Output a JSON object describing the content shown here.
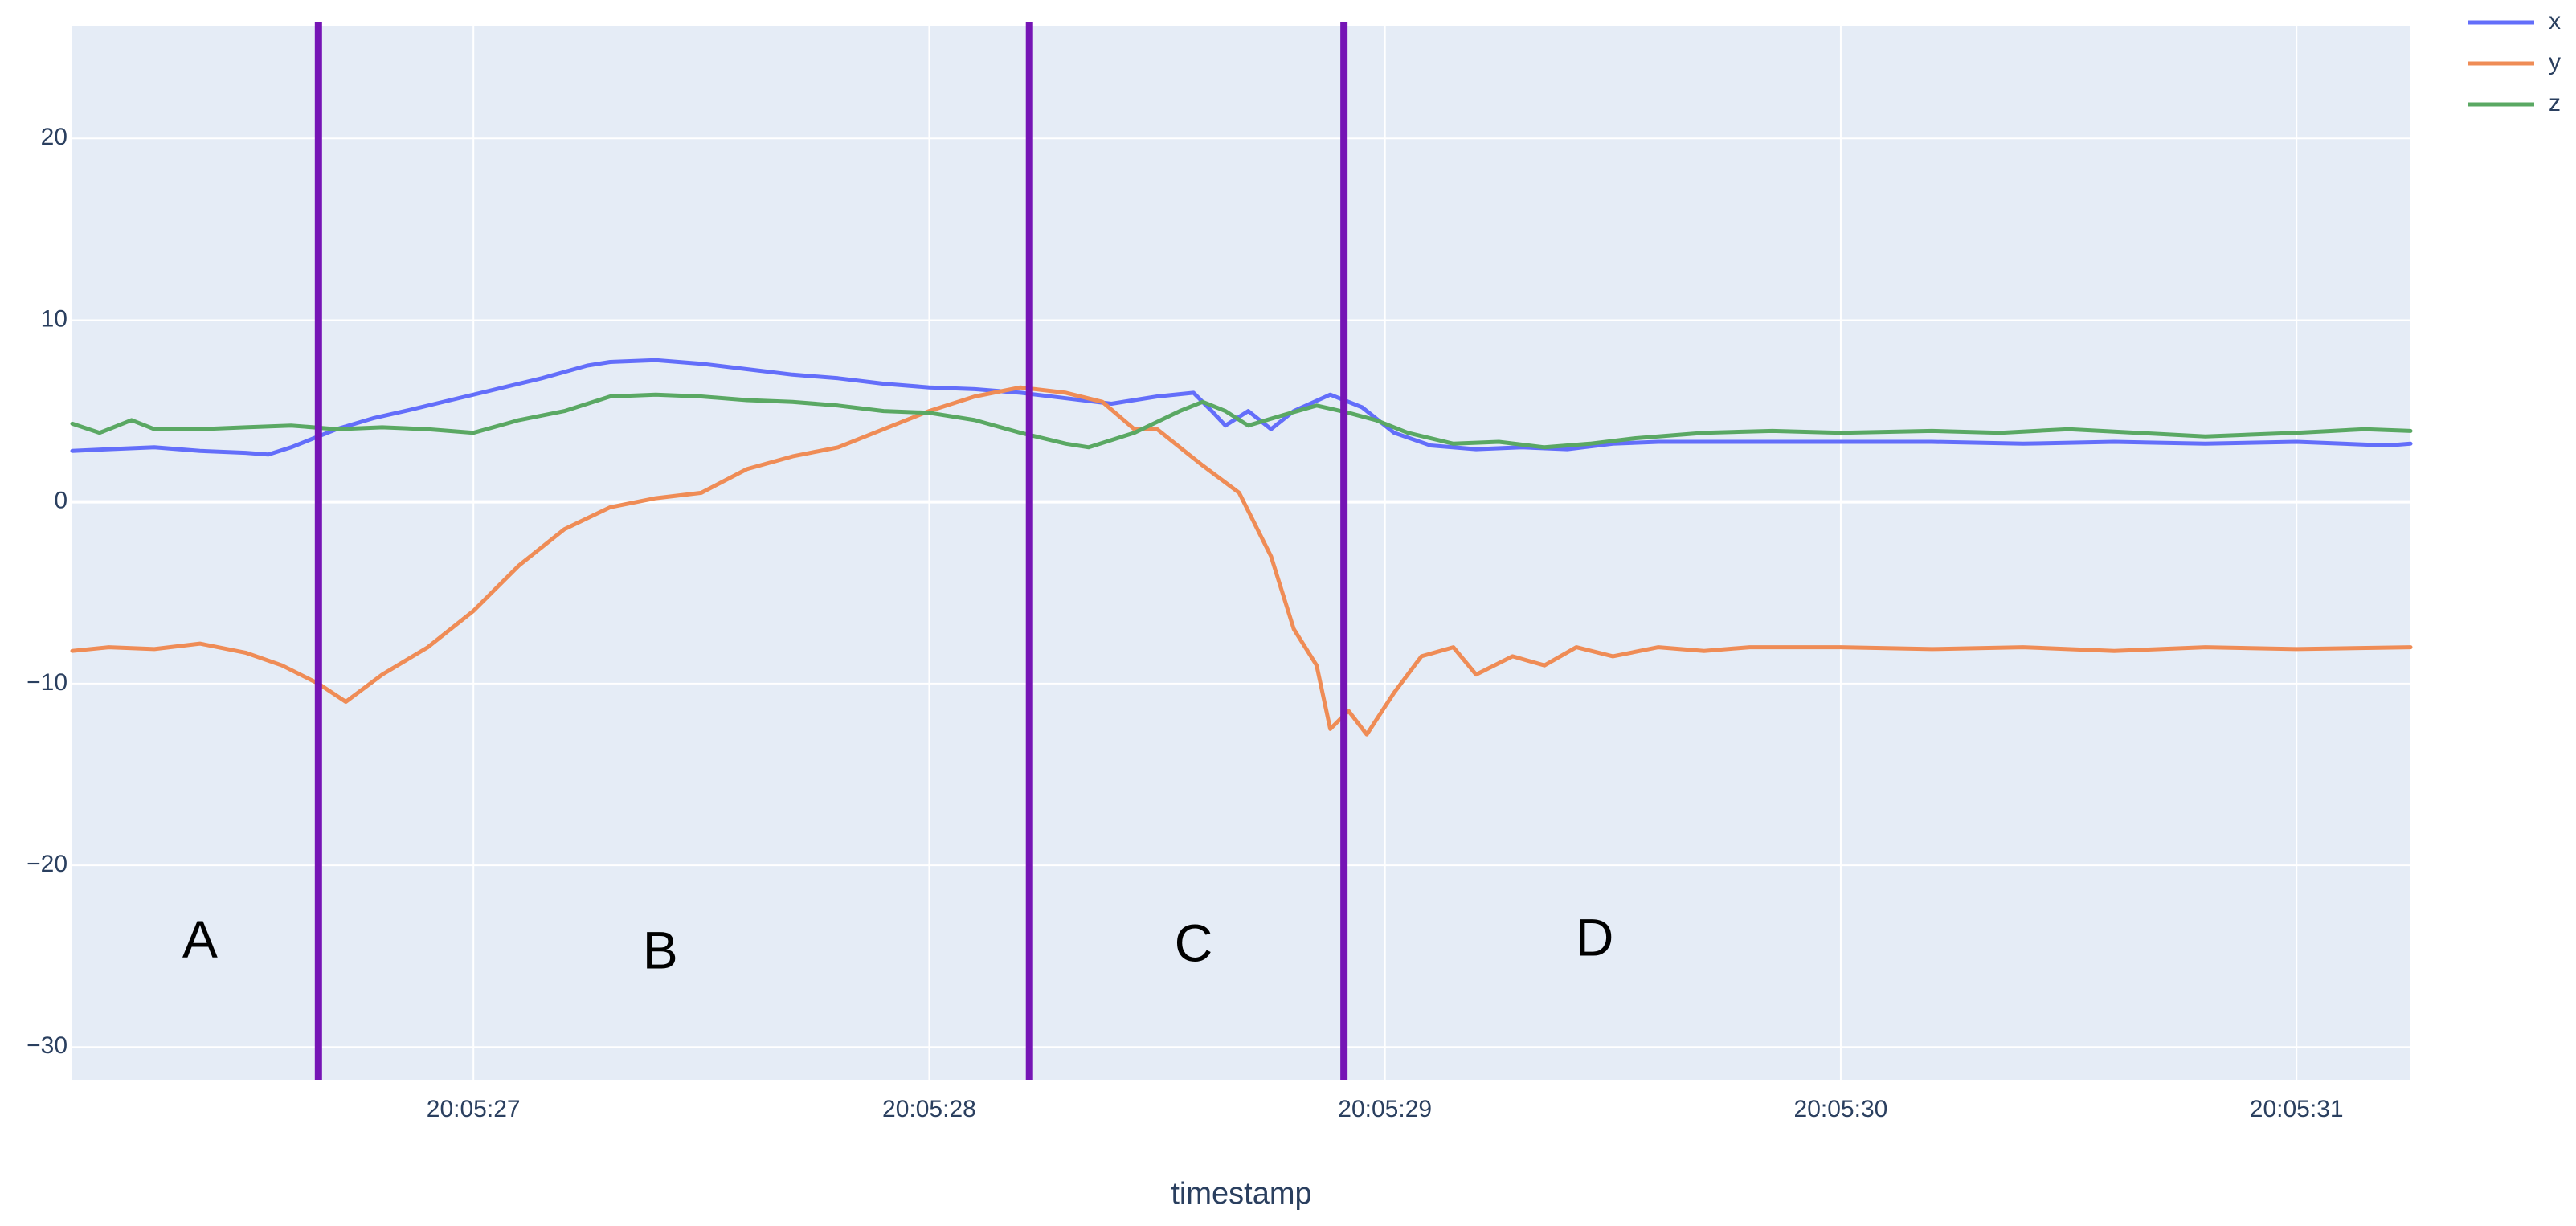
{
  "chart_data": {
    "type": "line",
    "title": "",
    "xlabel": "timestamp",
    "ylabel": "",
    "xlim": [
      26.12,
      31.25
    ],
    "ylim": [
      -31.8,
      26.2
    ],
    "grid": true,
    "legend_placement": "top-right, outside plot",
    "background_color": "#e5ecf6",
    "x_tick_values": [
      27,
      28,
      29,
      30,
      31
    ],
    "x_tick_labels": [
      "20:05:27",
      "20:05:28",
      "20:05:29",
      "20:05:30",
      "20:05:31"
    ],
    "y_tick_values": [
      20,
      10,
      0,
      -10,
      -20,
      -30
    ],
    "y_tick_labels": [
      "20",
      "10",
      "0",
      "−10",
      "−20",
      "−30"
    ],
    "x_unit_note": "seconds past 20:05",
    "series": [
      {
        "name": "x",
        "color": "#636efa",
        "points": [
          [
            26.12,
            2.8
          ],
          [
            26.2,
            2.9
          ],
          [
            26.3,
            3.0
          ],
          [
            26.4,
            2.8
          ],
          [
            26.5,
            2.7
          ],
          [
            26.55,
            2.6
          ],
          [
            26.6,
            3.0
          ],
          [
            26.66,
            3.6
          ],
          [
            26.7,
            4.0
          ],
          [
            26.78,
            4.6
          ],
          [
            26.85,
            5.0
          ],
          [
            26.95,
            5.6
          ],
          [
            27.05,
            6.2
          ],
          [
            27.15,
            6.8
          ],
          [
            27.25,
            7.5
          ],
          [
            27.3,
            7.7
          ],
          [
            27.4,
            7.8
          ],
          [
            27.5,
            7.6
          ],
          [
            27.6,
            7.3
          ],
          [
            27.7,
            7.0
          ],
          [
            27.8,
            6.8
          ],
          [
            27.9,
            6.5
          ],
          [
            28.0,
            6.3
          ],
          [
            28.1,
            6.2
          ],
          [
            28.2,
            6.0
          ],
          [
            28.3,
            5.7
          ],
          [
            28.4,
            5.4
          ],
          [
            28.5,
            5.8
          ],
          [
            28.58,
            6.0
          ],
          [
            28.62,
            5.0
          ],
          [
            28.65,
            4.2
          ],
          [
            28.7,
            5.0
          ],
          [
            28.75,
            4.0
          ],
          [
            28.8,
            5.0
          ],
          [
            28.88,
            5.9
          ],
          [
            28.95,
            5.2
          ],
          [
            29.02,
            3.8
          ],
          [
            29.1,
            3.1
          ],
          [
            29.2,
            2.9
          ],
          [
            29.3,
            3.0
          ],
          [
            29.4,
            2.9
          ],
          [
            29.5,
            3.2
          ],
          [
            29.6,
            3.3
          ],
          [
            29.8,
            3.3
          ],
          [
            30.0,
            3.3
          ],
          [
            30.2,
            3.3
          ],
          [
            30.4,
            3.2
          ],
          [
            30.6,
            3.3
          ],
          [
            30.8,
            3.2
          ],
          [
            31.0,
            3.3
          ],
          [
            31.2,
            3.1
          ],
          [
            31.25,
            3.2
          ]
        ]
      },
      {
        "name": "y",
        "color": "#ef8c56",
        "points": [
          [
            26.12,
            -8.2
          ],
          [
            26.2,
            -8.0
          ],
          [
            26.3,
            -8.1
          ],
          [
            26.4,
            -7.8
          ],
          [
            26.5,
            -8.3
          ],
          [
            26.58,
            -9.0
          ],
          [
            26.66,
            -10.0
          ],
          [
            26.72,
            -11.0
          ],
          [
            26.8,
            -9.5
          ],
          [
            26.9,
            -8.0
          ],
          [
            27.0,
            -6.0
          ],
          [
            27.1,
            -3.5
          ],
          [
            27.2,
            -1.5
          ],
          [
            27.3,
            -0.3
          ],
          [
            27.4,
            0.2
          ],
          [
            27.5,
            0.5
          ],
          [
            27.6,
            1.8
          ],
          [
            27.7,
            2.5
          ],
          [
            27.8,
            3.0
          ],
          [
            27.9,
            4.0
          ],
          [
            28.0,
            5.0
          ],
          [
            28.1,
            5.8
          ],
          [
            28.2,
            6.3
          ],
          [
            28.3,
            6.0
          ],
          [
            28.38,
            5.5
          ],
          [
            28.45,
            4.0
          ],
          [
            28.5,
            4.0
          ],
          [
            28.55,
            3.0
          ],
          [
            28.6,
            2.0
          ],
          [
            28.68,
            0.5
          ],
          [
            28.75,
            -3.0
          ],
          [
            28.8,
            -7.0
          ],
          [
            28.85,
            -9.0
          ],
          [
            28.88,
            -12.5
          ],
          [
            28.92,
            -11.5
          ],
          [
            28.96,
            -12.8
          ],
          [
            29.02,
            -10.5
          ],
          [
            29.08,
            -8.5
          ],
          [
            29.15,
            -8.0
          ],
          [
            29.2,
            -9.5
          ],
          [
            29.28,
            -8.5
          ],
          [
            29.35,
            -9.0
          ],
          [
            29.42,
            -8.0
          ],
          [
            29.5,
            -8.5
          ],
          [
            29.6,
            -8.0
          ],
          [
            29.7,
            -8.2
          ],
          [
            29.8,
            -8.0
          ],
          [
            30.0,
            -8.0
          ],
          [
            30.2,
            -8.1
          ],
          [
            30.4,
            -8.0
          ],
          [
            30.6,
            -8.2
          ],
          [
            30.8,
            -8.0
          ],
          [
            31.0,
            -8.1
          ],
          [
            31.25,
            -8.0
          ]
        ]
      },
      {
        "name": "z",
        "color": "#5aa863",
        "points": [
          [
            26.12,
            4.3
          ],
          [
            26.18,
            3.8
          ],
          [
            26.25,
            4.5
          ],
          [
            26.3,
            4.0
          ],
          [
            26.4,
            4.0
          ],
          [
            26.5,
            4.1
          ],
          [
            26.6,
            4.2
          ],
          [
            26.7,
            4.0
          ],
          [
            26.8,
            4.1
          ],
          [
            26.9,
            4.0
          ],
          [
            27.0,
            3.8
          ],
          [
            27.1,
            4.5
          ],
          [
            27.2,
            5.0
          ],
          [
            27.3,
            5.8
          ],
          [
            27.4,
            5.9
          ],
          [
            27.5,
            5.8
          ],
          [
            27.6,
            5.6
          ],
          [
            27.7,
            5.5
          ],
          [
            27.8,
            5.3
          ],
          [
            27.9,
            5.0
          ],
          [
            28.0,
            4.9
          ],
          [
            28.1,
            4.5
          ],
          [
            28.2,
            3.8
          ],
          [
            28.3,
            3.2
          ],
          [
            28.35,
            3.0
          ],
          [
            28.45,
            3.8
          ],
          [
            28.55,
            5.0
          ],
          [
            28.6,
            5.5
          ],
          [
            28.65,
            5.0
          ],
          [
            28.7,
            4.2
          ],
          [
            28.78,
            4.8
          ],
          [
            28.85,
            5.3
          ],
          [
            28.92,
            4.9
          ],
          [
            28.98,
            4.5
          ],
          [
            29.05,
            3.8
          ],
          [
            29.15,
            3.2
          ],
          [
            29.25,
            3.3
          ],
          [
            29.35,
            3.0
          ],
          [
            29.45,
            3.2
          ],
          [
            29.55,
            3.5
          ],
          [
            29.7,
            3.8
          ],
          [
            29.85,
            3.9
          ],
          [
            30.0,
            3.8
          ],
          [
            30.2,
            3.9
          ],
          [
            30.35,
            3.8
          ],
          [
            30.5,
            4.0
          ],
          [
            30.65,
            3.8
          ],
          [
            30.8,
            3.6
          ],
          [
            31.0,
            3.8
          ],
          [
            31.15,
            4.0
          ],
          [
            31.25,
            3.9
          ]
        ]
      }
    ],
    "vertical_markers": [
      {
        "x": 26.66,
        "color": "#7515b5"
      },
      {
        "x": 28.22,
        "color": "#7515b5"
      },
      {
        "x": 28.91,
        "color": "#7515b5"
      }
    ],
    "annotations": [
      {
        "text": "A",
        "x": 26.4,
        "y": -24.3
      },
      {
        "text": "B",
        "x": 27.41,
        "y": -24.9
      },
      {
        "text": "C",
        "x": 28.58,
        "y": -24.5
      },
      {
        "text": "D",
        "x": 29.46,
        "y": -24.2
      }
    ]
  }
}
